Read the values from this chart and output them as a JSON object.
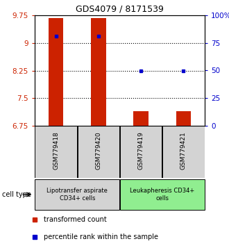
{
  "title": "GDS4079 / 8171539",
  "samples": [
    "GSM779418",
    "GSM779420",
    "GSM779419",
    "GSM779421"
  ],
  "red_values": [
    9.68,
    9.68,
    7.15,
    7.15
  ],
  "blue_values": [
    81.0,
    81.0,
    50.0,
    50.0
  ],
  "ylim_left": [
    6.75,
    9.75
  ],
  "ylim_right": [
    0,
    100
  ],
  "yticks_left": [
    6.75,
    7.5,
    8.25,
    9.0,
    9.75
  ],
  "ytick_labels_left": [
    "6.75",
    "7.5",
    "8.25",
    "9",
    "9.75"
  ],
  "yticks_right": [
    0,
    25,
    50,
    75,
    100
  ],
  "ytick_labels_right": [
    "0",
    "25",
    "50",
    "75",
    "100%"
  ],
  "dotted_yticks": [
    9.0,
    8.25,
    7.5
  ],
  "groups": [
    {
      "label": "Lipotransfer aspirate\nCD34+ cells",
      "samples": [
        0,
        1
      ],
      "color": "#d3d3d3"
    },
    {
      "label": "Leukapheresis CD34+\ncells",
      "samples": [
        2,
        3
      ],
      "color": "#90ee90"
    }
  ],
  "bar_color": "#cc2200",
  "dot_color": "#0000cc",
  "bar_width": 0.35,
  "background_color": "#ffffff",
  "cell_type_label": "cell type",
  "legend_items": [
    {
      "color": "#cc2200",
      "label": "transformed count"
    },
    {
      "color": "#0000cc",
      "label": "percentile rank within the sample"
    }
  ]
}
